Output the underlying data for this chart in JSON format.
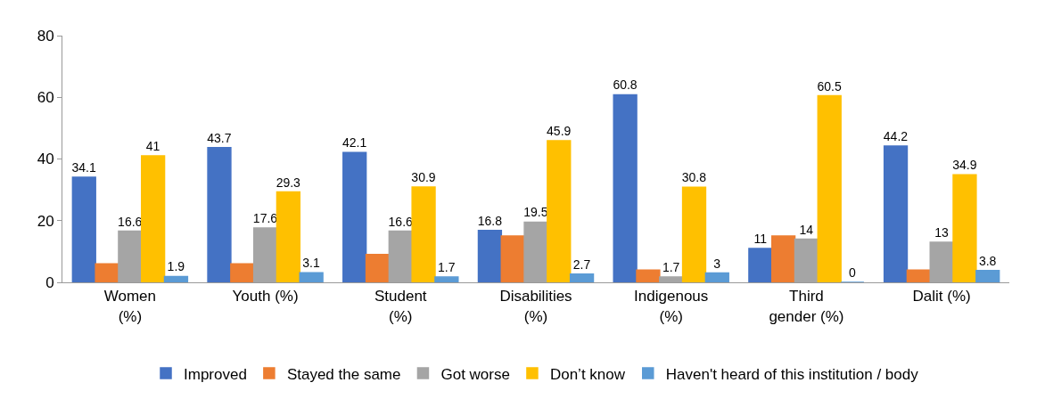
{
  "chart_data": {
    "type": "bar",
    "categories": [
      "Women\n(%)",
      "Youth (%)",
      "Student\n(%)",
      "Disabilities\n(%)",
      "Indigenous\n(%)",
      "Third\ngender (%)",
      "Dalit (%)"
    ],
    "series": [
      {
        "name": "Improved",
        "color": "#4472c4",
        "values": [
          34.1,
          43.7,
          42.1,
          16.8,
          60.8,
          11,
          44.2
        ],
        "value_labels": [
          "34.1",
          "43.7",
          "42.1",
          "16.8",
          "60.8",
          "11",
          "44.2"
        ]
      },
      {
        "name": "Stayed the same",
        "color": "#ed7d31",
        "values": [
          6,
          6,
          9,
          15,
          4,
          15,
          4
        ]
      },
      {
        "name": "Got worse",
        "color": "#a5a5a5",
        "values": [
          16.6,
          17.6,
          16.6,
          19.5,
          1.7,
          14,
          13
        ],
        "value_labels": [
          "16.6",
          "17.6",
          "16.6",
          "19.5",
          "1.7",
          "14",
          "13"
        ]
      },
      {
        "name": "Don’t know",
        "color": "#ffc000",
        "values": [
          41,
          29.3,
          30.9,
          45.9,
          30.8,
          60.5,
          34.9
        ],
        "value_labels": [
          "41",
          "29.3",
          "30.9",
          "45.9",
          "30.8",
          "60.5",
          "34.9"
        ]
      },
      {
        "name": "Haven't heard of this institution / body",
        "color": "#5b9bd5",
        "values": [
          1.9,
          3.1,
          1.7,
          2.7,
          3,
          0,
          3.8
        ],
        "value_labels": [
          "1.9",
          "3.1",
          "1.7",
          "2.7",
          "3",
          "0",
          "3.8"
        ]
      }
    ],
    "ylim": [
      0,
      80
    ],
    "yticks": [
      0,
      20,
      40,
      60,
      80
    ],
    "legend": "bottom"
  }
}
